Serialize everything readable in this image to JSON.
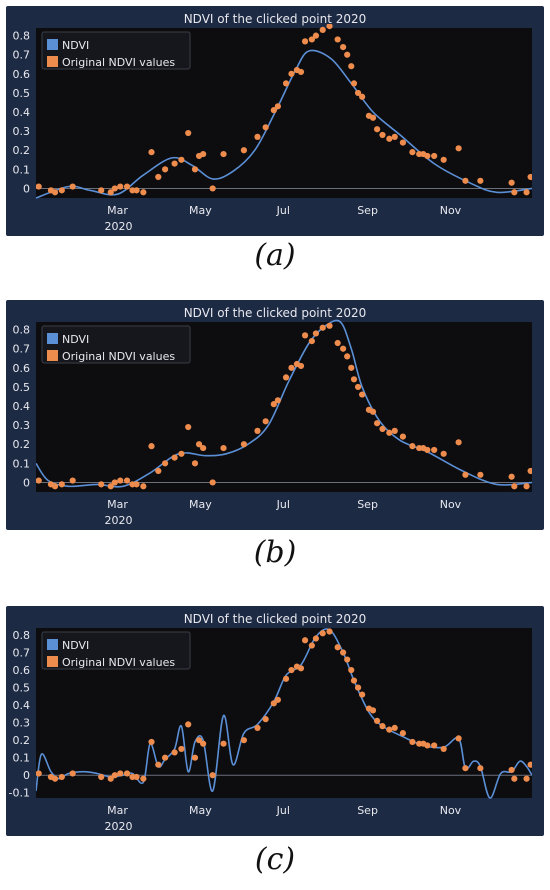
{
  "captions": [
    "(a)",
    "(b)",
    "(c)"
  ],
  "colors": {
    "panel_bg": "#1c2a44",
    "plot_bg": "#0d0d0f",
    "line": "#5b8fd6",
    "point": "#ee8c4e",
    "text": "#e8e8ee",
    "zero_line": "#6b6f7a"
  },
  "chart_data": [
    {
      "type": "line",
      "title": "NDVI of the clicked point 2020",
      "year_label": "2020",
      "x_ticks": [
        "Mar",
        "May",
        "Jul",
        "Sep",
        "Nov"
      ],
      "y_ticks": [
        "0",
        "0.1",
        "0.2",
        "0.3",
        "0.4",
        "0.5",
        "0.6",
        "0.7",
        "0.8"
      ],
      "ylim": [
        -0.05,
        0.84
      ],
      "legend": [
        {
          "label": "NDVI",
          "kind": "line"
        },
        {
          "label": "Original NDVI values",
          "kind": "point"
        }
      ],
      "series": [
        {
          "name": "NDVI",
          "x": [
            "Jan 1",
            "Jan 25",
            "Feb 10",
            "Mar 1",
            "Mar 20",
            "Apr 10",
            "Apr 25",
            "May 10",
            "May 25",
            "Jun 10",
            "Jun 25",
            "Jul 10",
            "Jul 20",
            "Aug 5",
            "Aug 20",
            "Sep 5",
            "Sep 25",
            "Oct 20",
            "Nov 15",
            "Dec 5",
            "Dec 31"
          ],
          "y": [
            -0.05,
            0.01,
            -0.01,
            -0.03,
            0.07,
            0.16,
            0.12,
            0.05,
            0.09,
            0.2,
            0.4,
            0.62,
            0.72,
            0.68,
            0.55,
            0.4,
            0.28,
            0.13,
            0.03,
            -0.02,
            0.0
          ]
        },
        {
          "name": "Original NDVI values",
          "x": [
            "Jan 3",
            "Jan 12",
            "Jan 15",
            "Jan 20",
            "Jan 28",
            "Feb 18",
            "Feb 25",
            "Feb 28",
            "Mar 3",
            "Mar 8",
            "Mar 12",
            "Mar 15",
            "Mar 20",
            "Mar 26",
            "Mar 31",
            "Apr 5",
            "Apr 12",
            "Apr 17",
            "Apr 22",
            "Apr 27",
            "Apr 30",
            "May 3",
            "May 10",
            "May 18",
            "Jun 2",
            "Jun 12",
            "Jun 18",
            "Jun 24",
            "Jun 27",
            "Jul 3",
            "Jul 7",
            "Jul 11",
            "Jul 14",
            "Jul 17",
            "Jul 22",
            "Jul 25",
            "Jul 30",
            "Aug 4",
            "Aug 10",
            "Aug 14",
            "Aug 17",
            "Aug 20",
            "Aug 22",
            "Aug 25",
            "Aug 28",
            "Sep 2",
            "Sep 5",
            "Sep 8",
            "Sep 12",
            "Sep 17",
            "Sep 21",
            "Sep 27",
            "Oct 4",
            "Oct 9",
            "Oct 12",
            "Oct 15",
            "Oct 20",
            "Oct 27",
            "Nov 7",
            "Nov 12",
            "Nov 23",
            "Dec 16",
            "Dec 18",
            "Dec 27",
            "Dec 30"
          ],
          "y": [
            0.01,
            -0.01,
            -0.02,
            -0.01,
            0.01,
            -0.01,
            -0.02,
            0.0,
            0.01,
            0.01,
            -0.01,
            -0.01,
            -0.02,
            0.19,
            0.06,
            0.1,
            0.13,
            0.15,
            0.29,
            0.1,
            0.17,
            0.18,
            0.0,
            0.18,
            0.2,
            0.27,
            0.32,
            0.41,
            0.43,
            0.55,
            0.6,
            0.62,
            0.61,
            0.77,
            0.78,
            0.8,
            0.83,
            0.85,
            0.78,
            0.74,
            0.7,
            0.64,
            0.55,
            0.5,
            0.48,
            0.38,
            0.37,
            0.31,
            0.28,
            0.26,
            0.27,
            0.24,
            0.19,
            0.18,
            0.18,
            0.17,
            0.17,
            0.15,
            0.21,
            0.04,
            0.04,
            0.03,
            -0.02,
            -0.02,
            0.06
          ]
        }
      ]
    },
    {
      "type": "line",
      "title": "NDVI of the clicked point 2020",
      "year_label": "2020",
      "x_ticks": [
        "Mar",
        "May",
        "Jul",
        "Sep",
        "Nov"
      ],
      "y_ticks": [
        "0",
        "0.1",
        "0.2",
        "0.3",
        "0.4",
        "0.5",
        "0.6",
        "0.7",
        "0.8"
      ],
      "ylim": [
        -0.05,
        0.84
      ],
      "legend": [
        {
          "label": "NDVI",
          "kind": "line"
        },
        {
          "label": "Original NDVI values",
          "kind": "point"
        }
      ],
      "series": [
        {
          "name": "NDVI",
          "x": [
            "Jan 1",
            "Jan 10",
            "Jan 25",
            "Feb 15",
            "Mar 5",
            "Mar 25",
            "Apr 15",
            "May 5",
            "May 20",
            "Jun 5",
            "Jun 20",
            "Jul 5",
            "Jul 20",
            "Aug 1",
            "Aug 12",
            "Aug 20",
            "Aug 28",
            "Sep 10",
            "Sep 25",
            "Oct 15",
            "Nov 10",
            "Dec 5",
            "Dec 31"
          ],
          "y": [
            0.1,
            0.01,
            -0.02,
            -0.01,
            -0.02,
            0.05,
            0.15,
            0.14,
            0.15,
            0.2,
            0.3,
            0.53,
            0.73,
            0.82,
            0.84,
            0.7,
            0.5,
            0.32,
            0.22,
            0.16,
            0.06,
            -0.01,
            0.0
          ]
        },
        {
          "name": "Original NDVI values",
          "x": [
            "Jan 3",
            "Jan 12",
            "Jan 15",
            "Jan 20",
            "Jan 28",
            "Feb 18",
            "Feb 25",
            "Feb 28",
            "Mar 3",
            "Mar 8",
            "Mar 12",
            "Mar 15",
            "Mar 20",
            "Mar 26",
            "Mar 31",
            "Apr 5",
            "Apr 12",
            "Apr 17",
            "Apr 22",
            "Apr 27",
            "Apr 30",
            "May 3",
            "May 10",
            "May 18",
            "Jun 2",
            "Jun 12",
            "Jun 18",
            "Jun 24",
            "Jun 27",
            "Jul 3",
            "Jul 7",
            "Jul 11",
            "Jul 14",
            "Jul 17",
            "Jul 22",
            "Jul 25",
            "Jul 30",
            "Aug 4",
            "Aug 10",
            "Aug 14",
            "Aug 17",
            "Aug 20",
            "Aug 22",
            "Aug 25",
            "Aug 28",
            "Sep 2",
            "Sep 5",
            "Sep 8",
            "Sep 12",
            "Sep 17",
            "Sep 21",
            "Sep 27",
            "Oct 4",
            "Oct 9",
            "Oct 12",
            "Oct 15",
            "Oct 20",
            "Oct 27",
            "Nov 7",
            "Nov 12",
            "Nov 23",
            "Dec 16",
            "Dec 18",
            "Dec 27",
            "Dec 30"
          ],
          "y": [
            0.01,
            -0.01,
            -0.02,
            -0.01,
            0.01,
            -0.01,
            -0.02,
            0.0,
            0.01,
            0.01,
            -0.01,
            -0.01,
            -0.02,
            0.19,
            0.06,
            0.1,
            0.13,
            0.15,
            0.29,
            0.1,
            0.2,
            0.18,
            0.0,
            0.18,
            0.2,
            0.27,
            0.32,
            0.41,
            0.43,
            0.55,
            0.6,
            0.62,
            0.61,
            0.77,
            0.74,
            0.78,
            0.81,
            0.82,
            0.73,
            0.7,
            0.66,
            0.6,
            0.54,
            0.5,
            0.46,
            0.38,
            0.37,
            0.31,
            0.28,
            0.26,
            0.27,
            0.24,
            0.19,
            0.18,
            0.18,
            0.17,
            0.17,
            0.15,
            0.21,
            0.04,
            0.04,
            0.03,
            -0.02,
            -0.02,
            0.06
          ]
        }
      ]
    },
    {
      "type": "line",
      "title": "NDVI of the clicked point 2020",
      "year_label": "2020",
      "x_ticks": [
        "Mar",
        "May",
        "Jul",
        "Sep",
        "Nov"
      ],
      "y_ticks": [
        "-0.1",
        "0",
        "0.1",
        "0.2",
        "0.3",
        "0.4",
        "0.5",
        "0.6",
        "0.7",
        "0.8"
      ],
      "ylim": [
        -0.13,
        0.84
      ],
      "legend": [
        {
          "label": "NDVI",
          "kind": "line"
        },
        {
          "label": "Original NDVI values",
          "kind": "point"
        }
      ],
      "series": [
        {
          "name": "NDVI",
          "x": [
            "Jan 1",
            "Jan 5",
            "Jan 12",
            "Jan 18",
            "Jan 25",
            "Feb 5",
            "Feb 15",
            "Feb 25",
            "Mar 5",
            "Mar 12",
            "Mar 20",
            "Mar 25",
            "Mar 31",
            "Apr 5",
            "Apr 12",
            "Apr 17",
            "Apr 22",
            "Apr 27",
            "May 3",
            "May 10",
            "May 18",
            "May 25",
            "Jun 2",
            "Jun 12",
            "Jun 24",
            "Jul 3",
            "Jul 14",
            "Jul 25",
            "Aug 4",
            "Aug 14",
            "Aug 22",
            "Sep 2",
            "Sep 12",
            "Sep 27",
            "Oct 12",
            "Oct 27",
            "Nov 7",
            "Nov 12",
            "Nov 18",
            "Nov 23",
            "Nov 30",
            "Dec 8",
            "Dec 16",
            "Dec 22",
            "Dec 27",
            "Dec 31"
          ],
          "y": [
            -0.09,
            0.12,
            0.02,
            -0.02,
            0.01,
            0.02,
            0.01,
            -0.01,
            0.0,
            0.01,
            -0.04,
            0.18,
            0.05,
            0.09,
            0.15,
            0.28,
            0.02,
            0.19,
            0.2,
            -0.09,
            0.34,
            0.06,
            0.24,
            0.29,
            0.42,
            0.57,
            0.63,
            0.79,
            0.83,
            0.7,
            0.54,
            0.36,
            0.28,
            0.22,
            0.17,
            0.16,
            0.21,
            0.04,
            0.08,
            0.05,
            -0.13,
            0.01,
            0.02,
            0.08,
            0.05,
            0.0
          ]
        },
        {
          "name": "Original NDVI values",
          "x": [
            "Jan 3",
            "Jan 12",
            "Jan 15",
            "Jan 20",
            "Jan 28",
            "Feb 18",
            "Feb 25",
            "Feb 28",
            "Mar 3",
            "Mar 8",
            "Mar 12",
            "Mar 15",
            "Mar 20",
            "Mar 26",
            "Mar 31",
            "Apr 5",
            "Apr 12",
            "Apr 17",
            "Apr 22",
            "Apr 27",
            "Apr 30",
            "May 3",
            "May 10",
            "May 18",
            "Jun 2",
            "Jun 12",
            "Jun 18",
            "Jun 24",
            "Jun 27",
            "Jul 3",
            "Jul 7",
            "Jul 11",
            "Jul 14",
            "Jul 17",
            "Jul 22",
            "Jul 25",
            "Jul 30",
            "Aug 4",
            "Aug 10",
            "Aug 14",
            "Aug 17",
            "Aug 20",
            "Aug 22",
            "Aug 25",
            "Aug 28",
            "Sep 2",
            "Sep 5",
            "Sep 8",
            "Sep 12",
            "Sep 17",
            "Sep 21",
            "Sep 27",
            "Oct 4",
            "Oct 9",
            "Oct 12",
            "Oct 15",
            "Oct 20",
            "Oct 27",
            "Nov 7",
            "Nov 12",
            "Nov 23",
            "Dec 16",
            "Dec 18",
            "Dec 27",
            "Dec 30"
          ],
          "y": [
            0.01,
            -0.01,
            -0.02,
            -0.01,
            0.01,
            -0.01,
            -0.02,
            0.0,
            0.01,
            0.01,
            -0.01,
            -0.01,
            -0.02,
            0.19,
            0.06,
            0.1,
            0.13,
            0.15,
            0.29,
            0.1,
            0.2,
            0.18,
            0.0,
            0.18,
            0.2,
            0.27,
            0.32,
            0.41,
            0.43,
            0.55,
            0.6,
            0.62,
            0.61,
            0.77,
            0.74,
            0.78,
            0.81,
            0.82,
            0.73,
            0.7,
            0.66,
            0.6,
            0.54,
            0.5,
            0.46,
            0.38,
            0.37,
            0.31,
            0.28,
            0.26,
            0.27,
            0.24,
            0.19,
            0.18,
            0.18,
            0.17,
            0.17,
            0.15,
            0.21,
            0.04,
            0.04,
            0.03,
            -0.02,
            -0.02,
            0.06
          ]
        }
      ]
    }
  ]
}
